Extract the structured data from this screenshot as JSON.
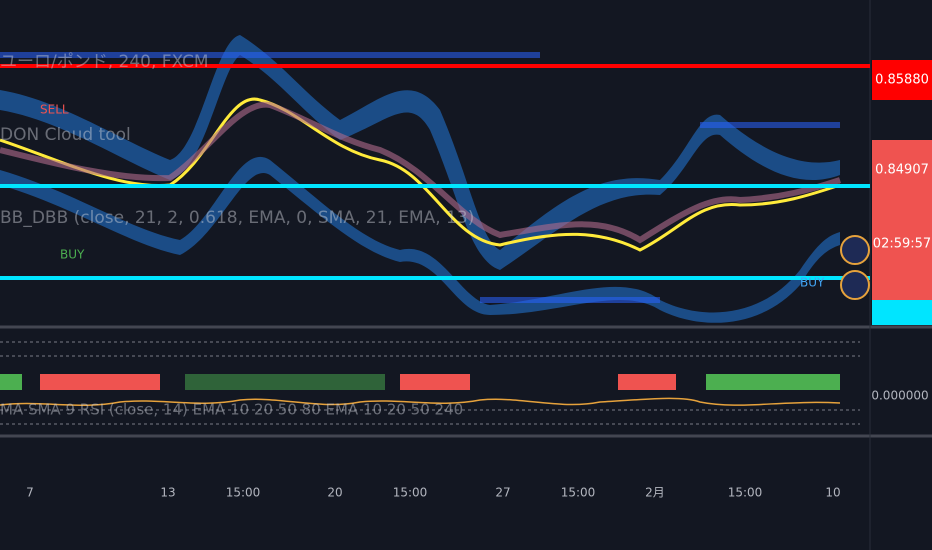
{
  "legend": {
    "symbol": "ユーロ/ポンド, 240, FXCM",
    "cloud": "DON Cloud tool",
    "bands": "BB_DBB (close, 21, 2, 0.618, EMA, 0, SMA, 21, EMA, 13)",
    "oscillator": "MA SMA 9 RSI (close, 14) EMA 10 20 50 80 EMA 10 20 50 240"
  },
  "signals": [
    "SELL",
    "BUY",
    "BUY"
  ],
  "price_axis": [
    "0.85880",
    "0.84907",
    "02:59:57"
  ],
  "indicator_axis": [
    "0.000000"
  ],
  "time_axis": [
    "7",
    "13",
    "15:00",
    "20",
    "15:00",
    "27",
    "15:00",
    "2月",
    "15:00",
    "10"
  ]
}
